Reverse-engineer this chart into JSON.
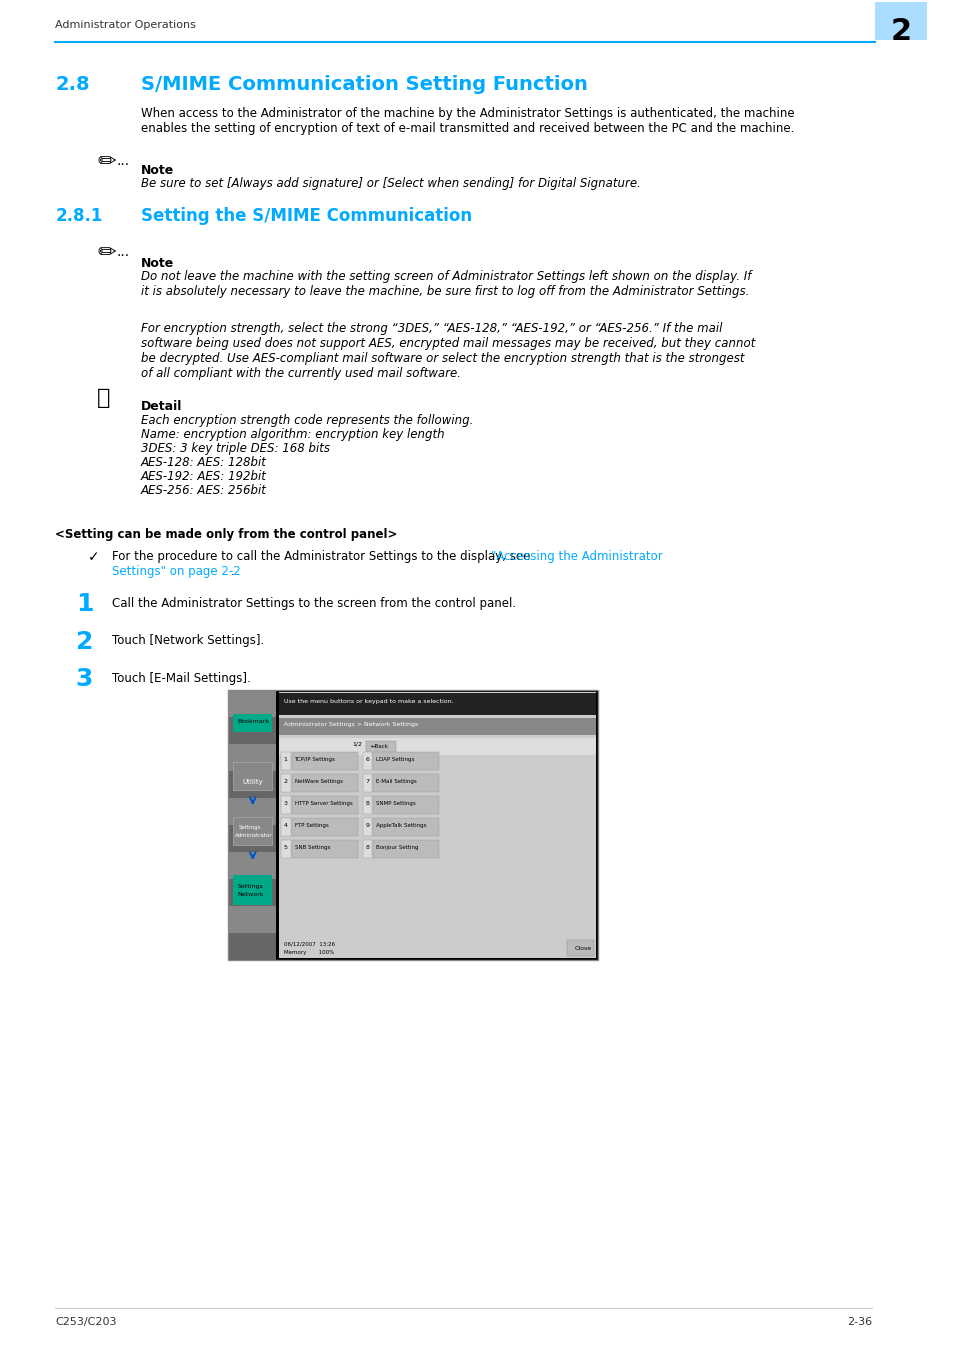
{
  "page_bg": "#ffffff",
  "header_text": "Administrator Operations",
  "header_line_color": "#00aaff",
  "page_number_bg": "#aaddff",
  "page_number": "2",
  "section_28_num": "2.8",
  "section_28_title": "S/MIME Communication Setting Function",
  "section_color": "#00aaff",
  "body_text_color": "#000000",
  "body_font_size": 8.5,
  "para_28": "When access to the Administrator of the machine by the Administrator Settings is authenticated, the machine\nenables the setting of encryption of text of e-mail transmitted and received between the PC and the machine.",
  "note_label": "Note",
  "note_28_text": "Be sure to set [Always add signature] or [Select when sending] for Digital Signature.",
  "section_281_num": "2.8.1",
  "section_281_title": "Setting the S/MIME Communication",
  "note_281_text1": "Do not leave the machine with the setting screen of Administrator Settings left shown on the display. If\nit is absolutely necessary to leave the machine, be sure first to log off from the Administrator Settings.",
  "note_281_text2": "For encryption strength, select the strong “3DES,” “AES-128,” “AES-192,” or “AES-256.” If the mail\nsoftware being used does not support AES, encrypted mail messages may be received, but they cannot\nbe decrypted. Use AES-compliant mail software or select the encryption strength that is the strongest\nof all compliant with the currently used mail software.",
  "detail_label": "Detail",
  "detail_lines": [
    "Each encryption strength code represents the following.",
    "Name: encryption algorithm: encryption key length",
    "3DES: 3 key triple DES: 168 bits",
    "AES-128: AES: 128bit",
    "AES-192: AES: 192bit",
    "AES-256: AES: 256bit"
  ],
  "setting_panel_header": "<Setting can be made only from the control panel>",
  "checkmark_line_black": "For the procedure to call the Administrator Settings to the display, see ",
  "checkmark_line_blue": "\"Accessing the Administrator\nSettings\" on page 2-2",
  "checkmark_line_end": ".",
  "step1_text": "Call the Administrator Settings to the screen from the control panel.",
  "step2_text": "Touch [Network Settings].",
  "step3_text": "Touch [E-Mail Settings].",
  "footer_left": "C253/C203",
  "footer_right": "2-36",
  "footer_line_color": "#cccccc"
}
